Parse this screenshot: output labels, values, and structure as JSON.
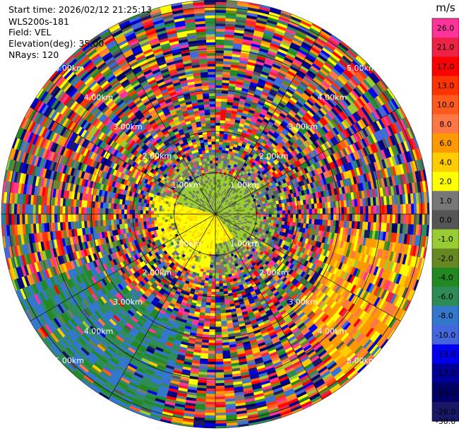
{
  "header": {
    "start_time": "Start time: 2026/02/12 21:25:13",
    "instrument": "WLS200s-181",
    "field": "Field: VEL",
    "elevation": "Elevation(deg): 35.00",
    "nrays": "NRays: 120"
  },
  "chart_data": {
    "type": "heatmap",
    "projection": "polar-ppi",
    "title": "",
    "nrays": 120,
    "elevation_deg": 35.0,
    "range_rings_km": [
      1,
      2,
      3,
      4,
      5
    ],
    "ring_labels": [
      "1.00km",
      "2.00km",
      "3.00km",
      "4.00km",
      "5.00km"
    ],
    "max_range_km": 5.8,
    "colorbar": {
      "unit": "m/s",
      "ticks": [
        "26.0",
        "21.0",
        "17.0",
        "13.0",
        "10.0",
        "8.0",
        "6.0",
        "4.0",
        "2.0",
        "1.0",
        "0.0",
        "-1.0",
        "-2.0",
        "-4.0",
        "-6.0",
        "-8.0",
        "-10.0",
        "-13.0",
        "-17.0",
        "-21.0",
        "-26.0",
        "-30.0"
      ],
      "colors": [
        "#ff3399",
        "#ee2244",
        "#ff0000",
        "#ff3300",
        "#ff5a1e",
        "#ff7744",
        "#ff9900",
        "#ffcc00",
        "#ffff00",
        "#777777",
        "#555555",
        "#99cc33",
        "#668822",
        "#228822",
        "#2e8b57",
        "#3377cc",
        "#4466dd",
        "#0000ee",
        "#000099",
        "#000066",
        "#181866"
      ]
    },
    "field_summary": {
      "near_center_ring_0_to_1km": "green (-1 to -2 m/s) in north, yellow (2 to 4 m/s) in south-west",
      "sector_south_west_3_to_6km": "green/teal (-6 to -10 m/s)",
      "sector_east_south_east_3_to_6km": "orange/yellow (4 to 8 m/s)",
      "outer_ranges": "noise, all colours"
    }
  }
}
